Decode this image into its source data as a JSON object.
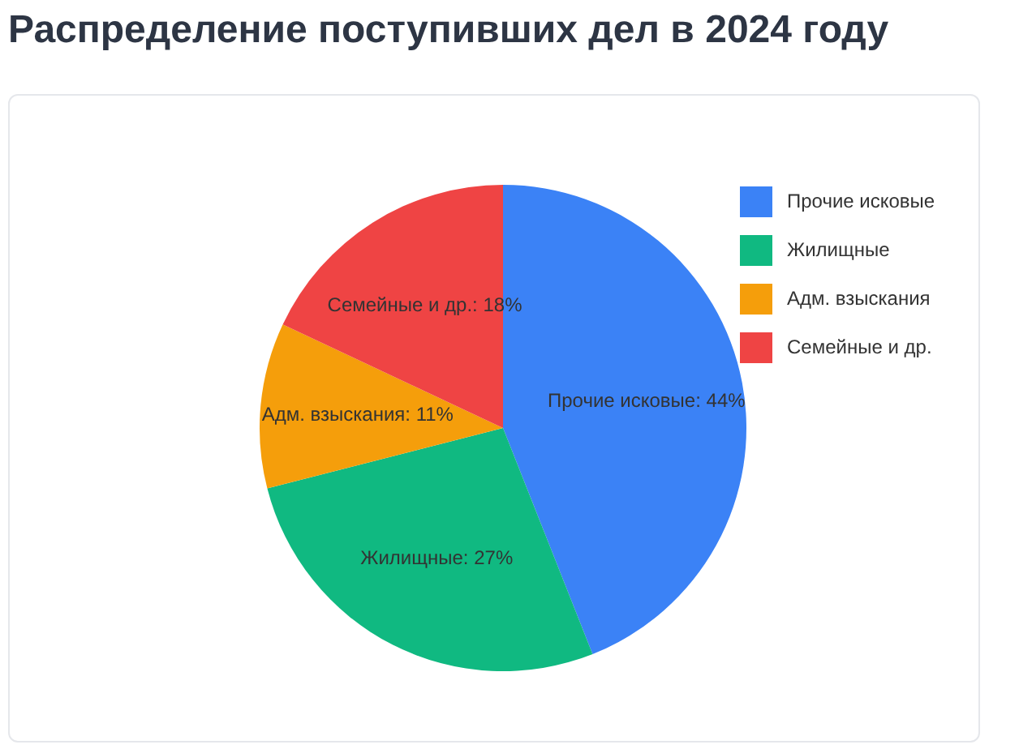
{
  "chart_data": {
    "type": "pie",
    "title": "Распределение поступивших дел в 2024 году",
    "categories": [
      "Прочие исковые",
      "Жилищные",
      "Адм. взыскания",
      "Семейные и др."
    ],
    "values": [
      44,
      27,
      11,
      18
    ],
    "colors": [
      "#3b82f6",
      "#10b981",
      "#f59e0b",
      "#ef4444"
    ],
    "value_labels": [
      "Прочие исковые: 44%",
      "Жилищные: 27%",
      "Адм. взыскания: 11%",
      "Семейные и др.: 18%"
    ],
    "legend": "top right"
  }
}
